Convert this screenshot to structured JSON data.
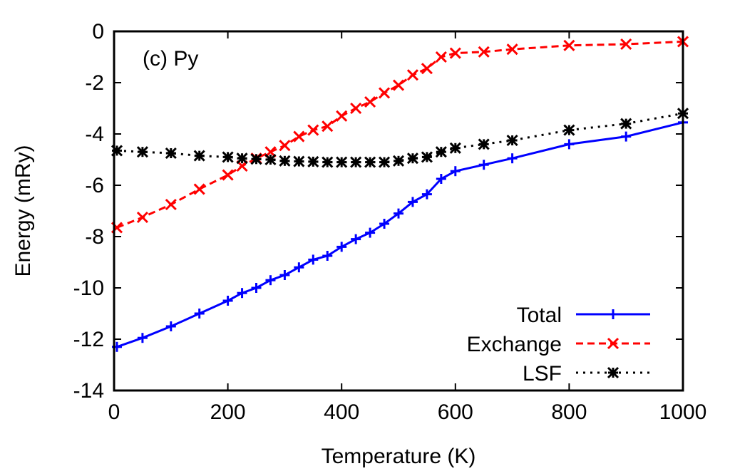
{
  "chart_data": {
    "type": "line",
    "annotation": "(c) Py",
    "xlabel": "Temperature (K)",
    "ylabel": "Energy (mRy)",
    "xlim": [
      0,
      1000
    ],
    "ylim": [
      -14,
      0
    ],
    "xticks": [
      0,
      200,
      400,
      600,
      800,
      1000
    ],
    "yticks": [
      0,
      -2,
      -4,
      -6,
      -8,
      -10,
      -12,
      -14
    ],
    "grid": false,
    "legend_position": "bottom-right",
    "x": [
      5,
      50,
      100,
      150,
      200,
      225,
      250,
      275,
      300,
      325,
      350,
      375,
      400,
      425,
      450,
      475,
      500,
      525,
      550,
      575,
      600,
      650,
      700,
      800,
      900,
      1000
    ],
    "series": [
      {
        "name": "Total",
        "color": "#0000ff",
        "dash": "solid",
        "marker": "plus",
        "values": [
          -12.3,
          -11.95,
          -11.5,
          -11.0,
          -10.5,
          -10.2,
          -10.0,
          -9.7,
          -9.5,
          -9.2,
          -8.9,
          -8.75,
          -8.4,
          -8.1,
          -7.85,
          -7.5,
          -7.1,
          -6.65,
          -6.35,
          -5.75,
          -5.45,
          -5.2,
          -4.95,
          -4.4,
          -4.1,
          -3.55
        ]
      },
      {
        "name": "Exchange",
        "color": "#ff0000",
        "dash": "dashed",
        "marker": "cross",
        "values": [
          -7.65,
          -7.25,
          -6.75,
          -6.15,
          -5.6,
          -5.25,
          -4.95,
          -4.7,
          -4.45,
          -4.1,
          -3.85,
          -3.7,
          -3.3,
          -3.0,
          -2.75,
          -2.4,
          -2.1,
          -1.7,
          -1.45,
          -1.0,
          -0.85,
          -0.8,
          -0.7,
          -0.55,
          -0.5,
          -0.4
        ]
      },
      {
        "name": "LSF",
        "color": "#000000",
        "dash": "dotted",
        "marker": "star",
        "values": [
          -4.65,
          -4.7,
          -4.75,
          -4.85,
          -4.9,
          -4.95,
          -4.98,
          -5.0,
          -5.05,
          -5.07,
          -5.08,
          -5.1,
          -5.1,
          -5.1,
          -5.1,
          -5.1,
          -5.05,
          -4.95,
          -4.9,
          -4.7,
          -4.55,
          -4.4,
          -4.25,
          -3.85,
          -3.6,
          -3.2
        ]
      }
    ]
  }
}
